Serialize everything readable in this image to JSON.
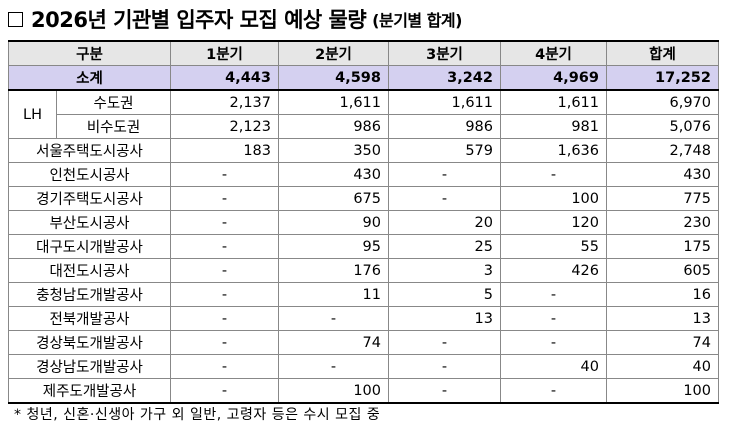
{
  "title": {
    "main": "2026년 기관별 입주자 모집 예상 물량",
    "sub": "(분기별 합계)"
  },
  "table": {
    "headers": [
      "구분",
      "1분기",
      "2분기",
      "3분기",
      "4분기",
      "합계"
    ],
    "subtotal": {
      "label": "소계",
      "values": [
        "4,443",
        "4,598",
        "3,242",
        "4,969",
        "17,252"
      ]
    },
    "lh": {
      "group_label": "LH",
      "rows": [
        {
          "label": "수도권",
          "values": [
            "2,137",
            "1,611",
            "1,611",
            "1,611",
            "6,970"
          ]
        },
        {
          "label": "비수도권",
          "values": [
            "2,123",
            "986",
            "986",
            "981",
            "5,076"
          ]
        }
      ]
    },
    "rows": [
      {
        "label": "서울주택도시공사",
        "values": [
          "183",
          "350",
          "579",
          "1,636",
          "2,748"
        ]
      },
      {
        "label": "인천도시공사",
        "values": [
          "-",
          "430",
          "-",
          "-",
          "430"
        ]
      },
      {
        "label": "경기주택도시공사",
        "values": [
          "-",
          "675",
          "-",
          "100",
          "775"
        ]
      },
      {
        "label": "부산도시공사",
        "values": [
          "-",
          "90",
          "20",
          "120",
          "230"
        ]
      },
      {
        "label": "대구도시개발공사",
        "values": [
          "-",
          "95",
          "25",
          "55",
          "175"
        ]
      },
      {
        "label": "대전도시공사",
        "values": [
          "-",
          "176",
          "3",
          "426",
          "605"
        ]
      },
      {
        "label": "충청남도개발공사",
        "values": [
          "-",
          "11",
          "5",
          "-",
          "16"
        ]
      },
      {
        "label": "전북개발공사",
        "values": [
          "-",
          "-",
          "13",
          "-",
          "13"
        ]
      },
      {
        "label": "경상북도개발공사",
        "values": [
          "-",
          "74",
          "-",
          "-",
          "74"
        ]
      },
      {
        "label": "경상남도개발공사",
        "values": [
          "-",
          "-",
          "-",
          "40",
          "40"
        ]
      },
      {
        "label": "제주도개발공사",
        "values": [
          "-",
          "100",
          "-",
          "-",
          "100"
        ]
      }
    ]
  },
  "footnote": "* 청년, 신혼·신생아 가구 외 일반, 고령자 등은 수시 모집 중"
}
